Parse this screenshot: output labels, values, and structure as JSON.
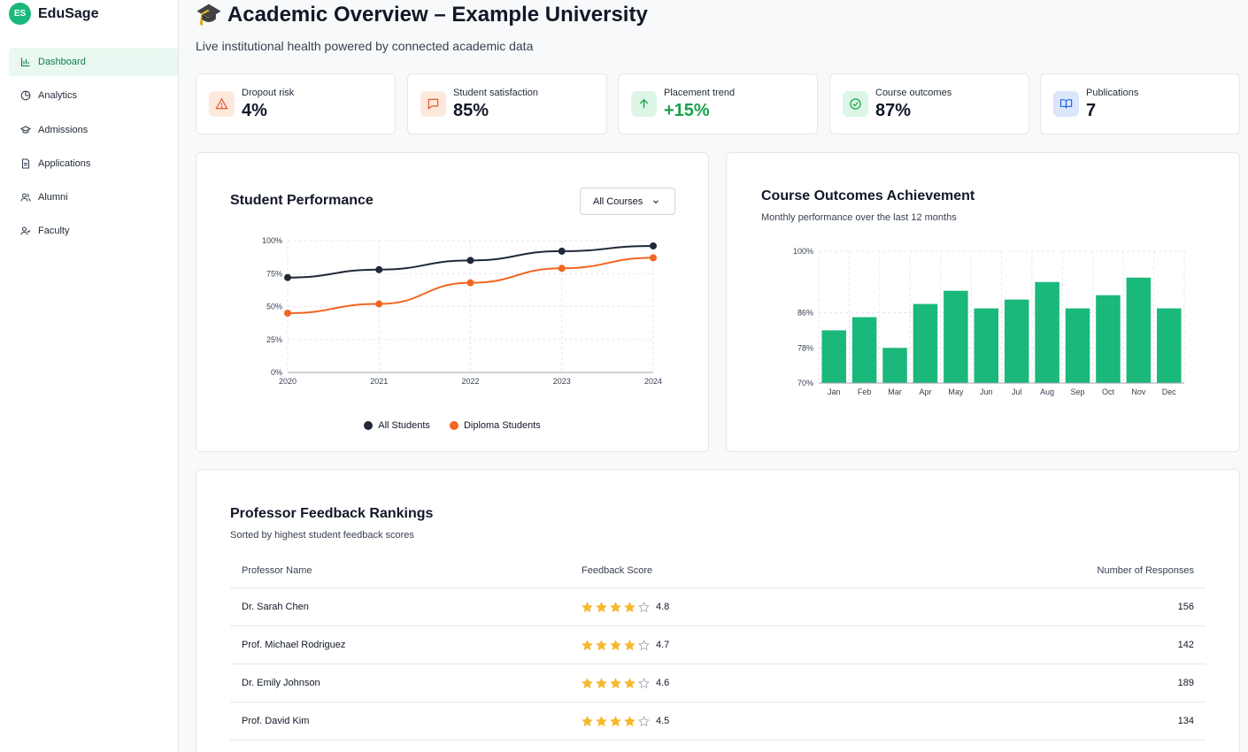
{
  "app": {
    "logo_initials": "ES",
    "name": "EduSage"
  },
  "sidebar": {
    "items": [
      {
        "label": "Dashboard",
        "icon": "bar-chart-icon",
        "active": true
      },
      {
        "label": "Analytics",
        "icon": "pie-chart-icon",
        "active": false
      },
      {
        "label": "Admissions",
        "icon": "graduation-cap-icon",
        "active": false
      },
      {
        "label": "Applications",
        "icon": "document-icon",
        "active": false
      },
      {
        "label": "Alumni",
        "icon": "users-icon",
        "active": false
      },
      {
        "label": "Faculty",
        "icon": "user-check-icon",
        "active": false
      }
    ]
  },
  "header": {
    "emoji": "🎓",
    "title": "Academic Overview – Example University",
    "subtitle": "Live institutional health powered by connected academic data"
  },
  "kpis": [
    {
      "label": "Dropout risk",
      "value": "4%",
      "icon": "alert-triangle-icon",
      "bg": "#fde8dc",
      "fg": "#e4572e"
    },
    {
      "label": "Student satisfaction",
      "value": "85%",
      "icon": "message-square-icon",
      "bg": "#fde8dc",
      "fg": "#e4572e"
    },
    {
      "label": "Placement trend",
      "value": "+15%",
      "icon": "arrow-up-icon",
      "bg": "#dcf5e6",
      "fg": "#16a34a"
    },
    {
      "label": "Course outcomes",
      "value": "87%",
      "icon": "check-circle-icon",
      "bg": "#dcf5e6",
      "fg": "#16a34a"
    },
    {
      "label": "Publications",
      "value": "7",
      "icon": "book-open-icon",
      "bg": "#dbe6fb",
      "fg": "#2563eb"
    }
  ],
  "performance": {
    "title": "Student Performance",
    "filter_label": "All Courses",
    "chart_data": {
      "type": "line",
      "x": [
        "2020",
        "2021",
        "2022",
        "2023",
        "2024"
      ],
      "y_ticks": [
        "0%",
        "25%",
        "50%",
        "75%",
        "100%"
      ],
      "ylim": [
        0,
        100
      ],
      "series": [
        {
          "name": "All Students",
          "color": "#1f2937",
          "values": [
            72,
            78,
            85,
            92,
            96
          ]
        },
        {
          "name": "Diploma Students",
          "color": "#f26522",
          "values": [
            45,
            52,
            68,
            79,
            87
          ]
        }
      ],
      "grid": true
    }
  },
  "outcomes": {
    "title": "Course Outcomes Achievement",
    "subtitle": "Monthly performance over the last 12 months",
    "chart_data": {
      "type": "bar",
      "categories": [
        "Jan",
        "Feb",
        "Mar",
        "Apr",
        "May",
        "Jun",
        "Jul",
        "Aug",
        "Sep",
        "Oct",
        "Nov",
        "Dec"
      ],
      "values": [
        82,
        85,
        78,
        88,
        91,
        87,
        89,
        93,
        87,
        90,
        94,
        87
      ],
      "y_ticks": [
        "70%",
        "78%",
        "86%",
        "100%"
      ],
      "y_tick_values": [
        70,
        78,
        86,
        100
      ],
      "ylim": [
        70,
        100
      ],
      "color": "#1ab87a",
      "grid": true
    }
  },
  "feedback": {
    "title": "Professor Feedback Rankings",
    "subtitle": "Sorted by highest student feedback scores",
    "columns": [
      "Professor Name",
      "Feedback Score",
      "Number of Responses"
    ],
    "rows": [
      {
        "name": "Dr. Sarah Chen",
        "score": "4.8",
        "stars": 4,
        "responses": "156"
      },
      {
        "name": "Prof. Michael Rodriguez",
        "score": "4.7",
        "stars": 4,
        "responses": "142"
      },
      {
        "name": "Dr. Emily Johnson",
        "score": "4.6",
        "stars": 4,
        "responses": "189"
      },
      {
        "name": "Prof. David Kim",
        "score": "4.5",
        "stars": 4,
        "responses": "134"
      }
    ]
  }
}
